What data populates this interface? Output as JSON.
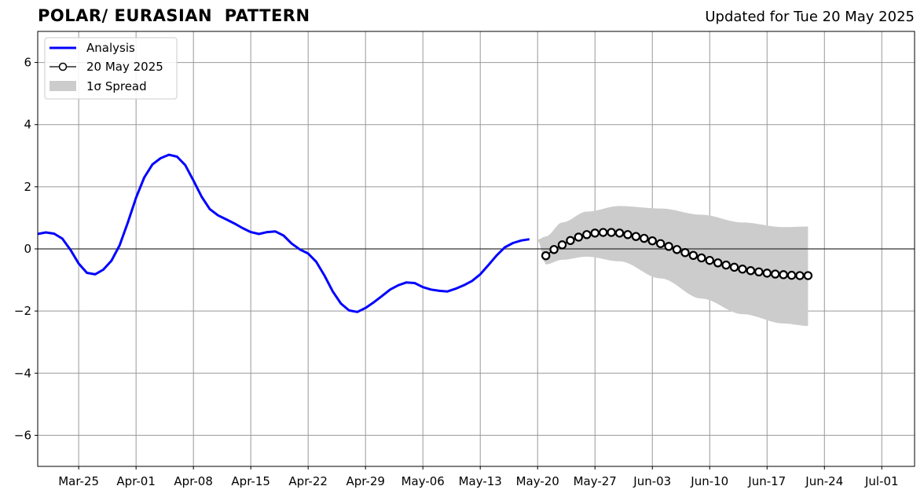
{
  "header": {
    "title": "POLAR/ EURASIAN  PATTERN",
    "updated": "Updated for Tue 20 May 2025"
  },
  "chart_data": {
    "type": "line",
    "title": "POLAR/ EURASIAN  PATTERN",
    "subtitle": "Updated for Tue 20 May 2025",
    "xlabel": "",
    "ylabel": "",
    "x_axis": {
      "type": "date",
      "range": [
        "2025-03-20",
        "2025-07-05"
      ],
      "tick_dates": [
        "2025-03-25",
        "2025-04-01",
        "2025-04-08",
        "2025-04-15",
        "2025-04-22",
        "2025-04-29",
        "2025-05-06",
        "2025-05-13",
        "2025-05-20",
        "2025-05-27",
        "2025-06-03",
        "2025-06-10",
        "2025-06-17",
        "2025-06-24",
        "2025-07-01"
      ],
      "tick_labels": [
        "Mar-25",
        "Apr-01",
        "Apr-08",
        "Apr-15",
        "Apr-22",
        "Apr-29",
        "May-06",
        "May-13",
        "May-20",
        "May-27",
        "Jun-03",
        "Jun-10",
        "Jun-17",
        "Jun-24",
        "Jul-01"
      ]
    },
    "y_axis": {
      "range": [
        -7,
        7
      ],
      "ticks": [
        -6,
        -4,
        -2,
        0,
        2,
        4,
        6
      ],
      "tick_labels": [
        "−6",
        "−4",
        "−2",
        "0",
        "2",
        "4",
        "6"
      ]
    },
    "grid": true,
    "legend_position": "top-left",
    "legend": [
      "Analysis",
      "20 May 2025",
      "1σ Spread"
    ],
    "colors": {
      "analysis": "#0000ff",
      "forecast_line": "#000000",
      "marker_fill": "#ffffff",
      "spread": "#cccccc",
      "grid": "#999999",
      "zero_line": "#333333"
    },
    "analysis": {
      "name": "Analysis",
      "start": "2025-03-20",
      "values": [
        0.48,
        0.53,
        0.49,
        0.33,
        -0.03,
        -0.47,
        -0.77,
        -0.82,
        -0.67,
        -0.38,
        0.12,
        0.85,
        1.65,
        2.3,
        2.72,
        2.92,
        3.03,
        2.97,
        2.7,
        2.2,
        1.68,
        1.28,
        1.08,
        0.95,
        0.82,
        0.67,
        0.54,
        0.48,
        0.54,
        0.56,
        0.43,
        0.17,
        -0.02,
        -0.15,
        -0.42,
        -0.86,
        -1.37,
        -1.76,
        -1.98,
        -2.03,
        -1.9,
        -1.72,
        -1.52,
        -1.31,
        -1.17,
        -1.08,
        -1.1,
        -1.23,
        -1.31,
        -1.35,
        -1.37,
        -1.28,
        -1.17,
        -1.03,
        -0.82,
        -0.52,
        -0.21,
        0.05,
        0.19,
        0.27,
        0.31
      ]
    },
    "forecast": {
      "name": "20 May 2025",
      "start": "2025-05-21",
      "values": [
        -0.22,
        -0.02,
        0.13,
        0.27,
        0.38,
        0.46,
        0.51,
        0.53,
        0.53,
        0.51,
        0.46,
        0.4,
        0.34,
        0.26,
        0.17,
        0.08,
        -0.02,
        -0.12,
        -0.21,
        -0.29,
        -0.37,
        -0.45,
        -0.52,
        -0.59,
        -0.65,
        -0.7,
        -0.74,
        -0.78,
        -0.81,
        -0.83,
        -0.85,
        -0.86,
        -0.86
      ]
    },
    "spread": {
      "name": "1σ Spread",
      "dates": [
        "2025-05-20",
        "2025-05-21",
        "2025-05-23",
        "2025-05-26",
        "2025-05-30",
        "2025-06-04",
        "2025-06-09",
        "2025-06-14",
        "2025-06-19",
        "2025-06-22"
      ],
      "upper": [
        0.3,
        0.4,
        0.85,
        1.2,
        1.38,
        1.3,
        1.1,
        0.85,
        0.7,
        0.72
      ],
      "lower": [
        0.3,
        -0.5,
        -0.35,
        -0.25,
        -0.4,
        -0.95,
        -1.6,
        -2.1,
        -2.4,
        -2.48
      ]
    }
  }
}
